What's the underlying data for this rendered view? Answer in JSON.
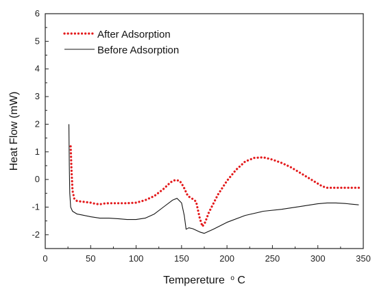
{
  "chart_data": {
    "type": "line",
    "title": "",
    "xlabel": "Tempereture",
    "xlabel_sup": "o",
    "xlabel_unit": "C",
    "ylabel": "Heat Flow (mW)",
    "xlim": [
      0,
      350
    ],
    "ylim": [
      -2.5,
      6
    ],
    "x_ticks": [
      "0",
      "50",
      "100",
      "150",
      "200",
      "250",
      "300",
      "350"
    ],
    "y_ticks": [
      "-2",
      "-1",
      "0",
      "1",
      "2",
      "3",
      "4",
      "5",
      "6"
    ],
    "grid": false,
    "legend_position": "top-left",
    "series": [
      {
        "name": "After Adsorption",
        "color": "#e31a1c",
        "style": "dotted",
        "points": [
          [
            28,
            1.2
          ],
          [
            29,
            0.3
          ],
          [
            30,
            -0.4
          ],
          [
            32,
            -0.7
          ],
          [
            35,
            -0.78
          ],
          [
            40,
            -0.8
          ],
          [
            45,
            -0.82
          ],
          [
            50,
            -0.84
          ],
          [
            55,
            -0.88
          ],
          [
            60,
            -0.9
          ],
          [
            65,
            -0.87
          ],
          [
            70,
            -0.86
          ],
          [
            80,
            -0.86
          ],
          [
            90,
            -0.86
          ],
          [
            100,
            -0.84
          ],
          [
            110,
            -0.75
          ],
          [
            120,
            -0.6
          ],
          [
            130,
            -0.35
          ],
          [
            138,
            -0.1
          ],
          [
            143,
            -0.02
          ],
          [
            148,
            -0.05
          ],
          [
            152,
            -0.25
          ],
          [
            157,
            -0.6
          ],
          [
            162,
            -0.7
          ],
          [
            166,
            -0.8
          ],
          [
            170,
            -1.4
          ],
          [
            173,
            -1.7
          ],
          [
            176,
            -1.55
          ],
          [
            180,
            -1.2
          ],
          [
            190,
            -0.55
          ],
          [
            200,
            -0.05
          ],
          [
            210,
            0.35
          ],
          [
            220,
            0.65
          ],
          [
            230,
            0.78
          ],
          [
            240,
            0.8
          ],
          [
            250,
            0.72
          ],
          [
            260,
            0.6
          ],
          [
            270,
            0.45
          ],
          [
            280,
            0.25
          ],
          [
            290,
            0.05
          ],
          [
            300,
            -0.15
          ],
          [
            305,
            -0.25
          ],
          [
            310,
            -0.3
          ],
          [
            320,
            -0.3
          ],
          [
            330,
            -0.3
          ],
          [
            345,
            -0.3
          ]
        ]
      },
      {
        "name": "Before Adsorption",
        "color": "#111111",
        "style": "solid",
        "points": [
          [
            26,
            2.0
          ],
          [
            26.5,
            0.5
          ],
          [
            27,
            -0.5
          ],
          [
            28,
            -1.0
          ],
          [
            30,
            -1.15
          ],
          [
            35,
            -1.25
          ],
          [
            40,
            -1.28
          ],
          [
            50,
            -1.35
          ],
          [
            60,
            -1.4
          ],
          [
            70,
            -1.4
          ],
          [
            80,
            -1.42
          ],
          [
            90,
            -1.45
          ],
          [
            100,
            -1.45
          ],
          [
            110,
            -1.4
          ],
          [
            120,
            -1.25
          ],
          [
            130,
            -1.0
          ],
          [
            140,
            -0.75
          ],
          [
            145,
            -0.68
          ],
          [
            150,
            -0.85
          ],
          [
            153,
            -1.3
          ],
          [
            155,
            -1.8
          ],
          [
            158,
            -1.75
          ],
          [
            162,
            -1.78
          ],
          [
            165,
            -1.82
          ],
          [
            170,
            -1.9
          ],
          [
            175,
            -1.95
          ],
          [
            185,
            -1.8
          ],
          [
            200,
            -1.55
          ],
          [
            220,
            -1.3
          ],
          [
            240,
            -1.15
          ],
          [
            260,
            -1.08
          ],
          [
            280,
            -0.98
          ],
          [
            300,
            -0.88
          ],
          [
            310,
            -0.85
          ],
          [
            320,
            -0.85
          ],
          [
            330,
            -0.87
          ],
          [
            345,
            -0.92
          ]
        ]
      }
    ]
  }
}
